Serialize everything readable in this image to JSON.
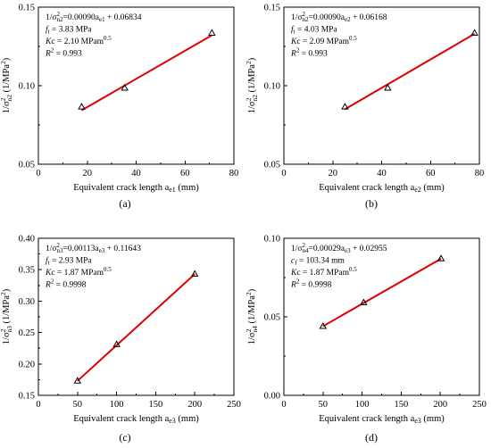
{
  "chart_data": [
    {
      "type": "scatter",
      "panel_label": "(a)",
      "xlabel": "Equivalent crack length a",
      "xlabel_sub": "e1",
      "xlabel_unit": " (mm)",
      "ylabel": "1/σ²n2 (1/MPa²)",
      "ylabel_parts": {
        "pre": "1/σ",
        "sup": "2",
        "sub": "n2",
        "post": " (1/MPa",
        "post_sup": "2",
        "end": ")"
      },
      "xlim": [
        0,
        80
      ],
      "ylim": [
        0.05,
        0.15
      ],
      "xticks": [
        0,
        20,
        40,
        60,
        80
      ],
      "yticks": [
        0.05,
        0.1,
        0.15
      ],
      "ytick_labels": [
        "0.05",
        "0.10",
        "0.15"
      ],
      "x": [
        17.7,
        35.3,
        71.0
      ],
      "y": [
        0.0865,
        0.0985,
        0.1335
      ],
      "fit": {
        "x": [
          17.7,
          71.0
        ],
        "y": [
          0.0843,
          0.1321
        ]
      },
      "annotations": [
        "1/σ²n2=0.00090ae1 + 0.06834",
        "ft = 3.83 MPa",
        "Kc = 2.10 MPam0.5",
        "R2 = 0.993"
      ]
    },
    {
      "type": "scatter",
      "panel_label": "(b)",
      "xlabel": "Equivalent crack length a",
      "xlabel_sub": "e2",
      "xlabel_unit": " (mm)",
      "ylabel": "1/σ²n2 (1/MPa²)",
      "ylabel_parts": {
        "pre": "1/σ",
        "sup": "2",
        "sub": "n2",
        "post": " (1/MPa",
        "post_sup": "2",
        "end": ")"
      },
      "xlim": [
        0,
        80
      ],
      "ylim": [
        0.05,
        0.15
      ],
      "xticks": [
        0,
        20,
        40,
        60,
        80
      ],
      "yticks": [
        0.05,
        0.1,
        0.15
      ],
      "ytick_labels": [
        "0.05",
        "0.10",
        "0.15"
      ],
      "x": [
        25.0,
        42.5,
        78.0
      ],
      "y": [
        0.0865,
        0.0985,
        0.1335
      ],
      "fit": {
        "x": [
          25.0,
          78.0
        ],
        "y": [
          0.085,
          0.133
        ]
      },
      "annotations": [
        "1/σ²n2=0.00090ae2 + 0.06168",
        "ft = 4.03 MPa",
        "Kc = 2.09 MPam0.5",
        "R2 = 0.993"
      ]
    },
    {
      "type": "scatter",
      "panel_label": "(c)",
      "xlabel": "Equivalent crack length a",
      "xlabel_sub": "e3",
      "xlabel_unit": " (mm)",
      "ylabel": "1/σ²n3 (1/MPa²)",
      "ylabel_parts": {
        "pre": "1/σ",
        "sup": "2",
        "sub": "n3",
        "post": " (1/MPa",
        "post_sup": "2",
        "end": ")"
      },
      "xlim": [
        0,
        250
      ],
      "ylim": [
        0.15,
        0.4
      ],
      "xticks": [
        0,
        50,
        100,
        150,
        200,
        250
      ],
      "yticks": [
        0.15,
        0.2,
        0.25,
        0.3,
        0.35,
        0.4
      ],
      "ytick_labels": [
        "0.15",
        "0.20",
        "0.25",
        "0.30",
        "0.35",
        "0.40"
      ],
      "x": [
        50,
        100,
        200
      ],
      "y": [
        0.173,
        0.231,
        0.343
      ],
      "fit": {
        "x": [
          50,
          200
        ],
        "y": [
          0.173,
          0.343
        ]
      },
      "annotations": [
        "1/σ²n3=0.00113ae3 + 0.11643",
        "ft = 2.93 MPa",
        "Kc = 1.87 MPam0.5",
        "R2 = 0.9998"
      ]
    },
    {
      "type": "scatter",
      "panel_label": "(d)",
      "xlabel": "Equivalent crack length a",
      "xlabel_sub": "e3",
      "xlabel_unit": " (mm)",
      "ylabel": "1/σ²n4 (1/MPa²)",
      "ylabel_parts": {
        "pre": "1/σ",
        "sup": "2",
        "sub": "n4",
        "post": " (1/MPa",
        "post_sup": "2",
        "end": ")"
      },
      "xlim": [
        0,
        250
      ],
      "ylim": [
        0.0,
        0.1
      ],
      "xticks": [
        0,
        50,
        100,
        150,
        200,
        250
      ],
      "yticks": [
        0.0,
        0.05,
        0.1
      ],
      "ytick_labels": [
        "0.00",
        "0.05",
        "0.10"
      ],
      "x": [
        50,
        102,
        201
      ],
      "y": [
        0.044,
        0.059,
        0.087
      ],
      "fit": {
        "x": [
          50,
          201
        ],
        "y": [
          0.044,
          0.087
        ]
      },
      "annotations": [
        "1/σ²n4=0.00029ae3 + 0.02955",
        "cf = 103.34 mm",
        "Kc = 1.87 MPam0.5",
        "R2 = 0.9998"
      ]
    }
  ]
}
